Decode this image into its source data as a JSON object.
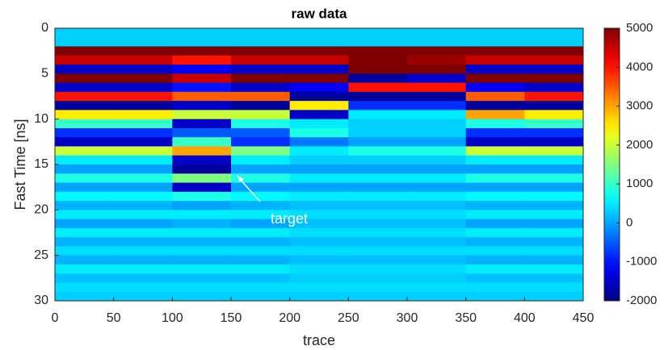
{
  "chart_data": {
    "type": "heatmap",
    "title": "raw data",
    "xlabel": "trace",
    "ylabel": "Fast Time [ns]",
    "annotation": "target",
    "y_reversed": true,
    "colormap": "jet",
    "xlim": [
      0,
      450
    ],
    "xticks": [
      0,
      50,
      100,
      150,
      200,
      250,
      300,
      350,
      400,
      450
    ],
    "ylim": [
      0,
      30
    ],
    "yticks": [
      0,
      5,
      10,
      15,
      20,
      25,
      30
    ],
    "clim": [
      -2000,
      5000
    ],
    "cticks": [
      -2000,
      -1000,
      0,
      1000,
      2000,
      3000,
      4000,
      5000
    ],
    "x_edges": [
      0,
      50,
      100,
      150,
      200,
      250,
      300,
      350,
      400,
      450
    ],
    "y_edges": [
      0,
      1,
      2,
      3,
      4,
      5,
      6,
      7,
      8,
      9,
      10,
      11,
      12,
      13,
      14,
      15,
      16,
      17,
      18,
      19,
      20,
      21,
      22,
      23,
      24,
      25,
      26,
      27,
      28,
      29,
      30
    ],
    "values": [
      [
        300,
        300,
        300,
        300,
        300,
        300,
        300,
        300,
        300
      ],
      [
        300,
        300,
        300,
        300,
        300,
        300,
        300,
        300,
        300
      ],
      [
        5000,
        5000,
        5000,
        5000,
        5000,
        5000,
        5000,
        5000,
        5000
      ],
      [
        4500,
        4500,
        4000,
        4500,
        4500,
        5000,
        4800,
        4500,
        4500
      ],
      [
        -1500,
        -1500,
        -1200,
        -1500,
        -1500,
        5000,
        5000,
        -1500,
        -1500
      ],
      [
        5000,
        5000,
        4500,
        5000,
        5000,
        -1800,
        -1500,
        5000,
        5000
      ],
      [
        -1500,
        -1500,
        -1000,
        -1500,
        -1200,
        4000,
        4000,
        -1200,
        -1500
      ],
      [
        4000,
        4000,
        3500,
        3500,
        -1800,
        -1800,
        -1800,
        3500,
        4000
      ],
      [
        -1800,
        -1800,
        -1500,
        -1800,
        2500,
        -800,
        -800,
        -1800,
        -1800
      ],
      [
        2500,
        2500,
        2000,
        2000,
        -1500,
        500,
        500,
        3000,
        2500
      ],
      [
        1000,
        1000,
        -1500,
        800,
        500,
        300,
        300,
        800,
        1000
      ],
      [
        -800,
        -800,
        -500,
        -500,
        800,
        300,
        300,
        -800,
        -800
      ],
      [
        -1500,
        -1500,
        1000,
        -800,
        -300,
        0,
        0,
        -1500,
        -1500
      ],
      [
        2000,
        2000,
        3000,
        1500,
        500,
        800,
        800,
        2000,
        2000
      ],
      [
        500,
        500,
        -1500,
        500,
        300,
        300,
        300,
        500,
        500
      ],
      [
        0,
        0,
        -1800,
        0,
        0,
        0,
        0,
        0,
        0
      ],
      [
        800,
        800,
        1500,
        800,
        500,
        500,
        500,
        800,
        800
      ],
      [
        0,
        0,
        -1500,
        0,
        0,
        0,
        0,
        0,
        0
      ],
      [
        600,
        600,
        800,
        600,
        500,
        500,
        500,
        600,
        600
      ],
      [
        100,
        100,
        0,
        100,
        200,
        200,
        200,
        100,
        100
      ],
      [
        500,
        500,
        500,
        500,
        400,
        400,
        400,
        500,
        500
      ],
      [
        0,
        0,
        100,
        0,
        200,
        200,
        200,
        0,
        0
      ],
      [
        500,
        500,
        500,
        500,
        400,
        400,
        400,
        500,
        500
      ],
      [
        100,
        100,
        100,
        100,
        200,
        200,
        200,
        100,
        100
      ],
      [
        400,
        400,
        400,
        400,
        400,
        400,
        400,
        400,
        400
      ],
      [
        100,
        100,
        100,
        100,
        200,
        200,
        200,
        100,
        100
      ],
      [
        500,
        500,
        500,
        500,
        400,
        400,
        400,
        500,
        500
      ],
      [
        200,
        200,
        200,
        200,
        300,
        300,
        300,
        200,
        200
      ],
      [
        400,
        400,
        400,
        400,
        400,
        400,
        400,
        400,
        400
      ],
      [
        300,
        300,
        300,
        300,
        300,
        300,
        300,
        300,
        300
      ]
    ]
  }
}
